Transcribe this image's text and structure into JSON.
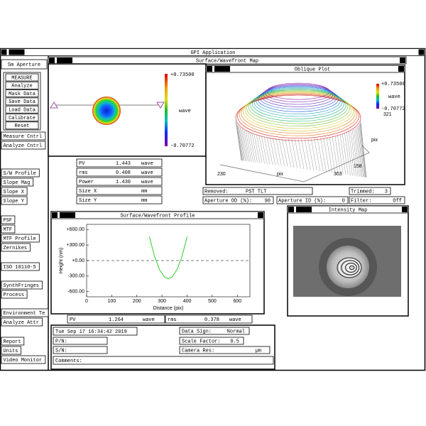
{
  "window_title": "GPI Application",
  "logo": "zygo",
  "sidebar": {
    "aperture": "Sm Aperture",
    "group": [
      "MEASURE",
      "Analyze",
      "Mask Data",
      "Save Data",
      "Load Data",
      "Calibrate",
      "Reset"
    ],
    "buttons": [
      "Measure Cntrl",
      "Analyze Cntrl",
      "S/W Profile",
      "Slope Mag",
      "Slope X",
      "Slope Y",
      "PSF",
      "MTF",
      "MTF Profile",
      "Zernikes",
      "ISO 10110-5",
      "SynthFringes",
      "Process",
      "Environment Te",
      "Analyze Attr",
      "Report",
      "Units",
      "Video Monitor"
    ]
  },
  "surface_map": {
    "title": "Surface/Wavefront Map",
    "scale_max": "+0.73500",
    "scale_unit": "wave",
    "scale_min": "-0.70772"
  },
  "oblique_plot": {
    "title": "Oblique Plot",
    "scale_max": "+0.73500",
    "scale_unit": "wave",
    "scale_min": "-0.70772",
    "axis_labels": [
      "321",
      "pix",
      "158",
      "230",
      "pix",
      "303"
    ]
  },
  "results": [
    {
      "label": "PV",
      "value": "1.443",
      "unit": "wave"
    },
    {
      "label": "rms",
      "value": "0.408",
      "unit": "wave"
    },
    {
      "label": "Power",
      "value": "1.430",
      "unit": "wave"
    },
    {
      "label": "Size X",
      "unit": "mm"
    },
    {
      "label": "Size Y",
      "unit": "mm"
    }
  ],
  "settings": [
    {
      "label": "Removed:",
      "value": "PST TLT"
    },
    {
      "label": "Trimmed:",
      "value": "3"
    },
    {
      "label": "Aperture OD (%):",
      "value": "90"
    },
    {
      "label": "Aperture ID (%):",
      "value": "0"
    },
    {
      "label": "Filter:",
      "value": "Off"
    }
  ],
  "profile": {
    "title": "Surface/Wavefront Profile",
    "chart_data": {
      "type": "line",
      "x_label": "Distance (pix)",
      "y_label": "Height (nm)",
      "xlim": [
        0,
        650
      ],
      "ylim": [
        -700,
        700
      ],
      "xticks": [
        0,
        100,
        200,
        300,
        400,
        500,
        600
      ],
      "yticks": [
        {
          "value": 600,
          "label": "+600.00"
        },
        {
          "value": 300,
          "label": "+300.00"
        },
        {
          "value": 0,
          "label": "+0.00"
        },
        {
          "value": -300,
          "label": "-300.00"
        },
        {
          "value": -600,
          "label": "-600.00"
        }
      ],
      "series": [
        {
          "color": "#2ecc2e",
          "x": [
            250,
            270,
            290,
            310,
            325,
            340,
            360,
            380,
            400
          ],
          "values": [
            460,
            86,
            -174,
            -318,
            -350,
            -318,
            -174,
            86,
            460
          ]
        }
      ]
    },
    "stats": [
      {
        "label": "PV",
        "value": "1.264",
        "unit": "wave"
      },
      {
        "label": "rms",
        "value": "0.378",
        "unit": "wave"
      }
    ]
  },
  "intensity_map": {
    "title": "Intensity Map"
  },
  "info": {
    "date": "Tue Sep 17 16:34:42 2019",
    "left": [
      "P/N:",
      "S/N:"
    ],
    "comments": "Comments:",
    "right": [
      {
        "label": "Data Sign:",
        "value": "Normal"
      },
      {
        "label": "Scale Factor:",
        "value": "0.5"
      },
      {
        "label": "Camera Res:",
        "unit": "µm"
      }
    ]
  }
}
